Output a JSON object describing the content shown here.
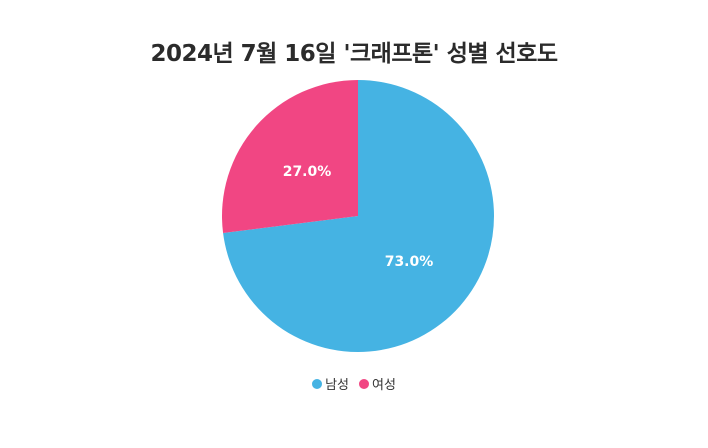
{
  "chart_data": {
    "type": "pie",
    "title": "2024년 7월 16일 '크래프톤' 성별 선호도",
    "categories": [
      "남성",
      "여성"
    ],
    "values": [
      73.0,
      27.0
    ],
    "data_labels": [
      "73.0%",
      "27.0%"
    ],
    "colors": [
      "#45b3e3",
      "#f14683"
    ],
    "legend_position": "bottom"
  }
}
